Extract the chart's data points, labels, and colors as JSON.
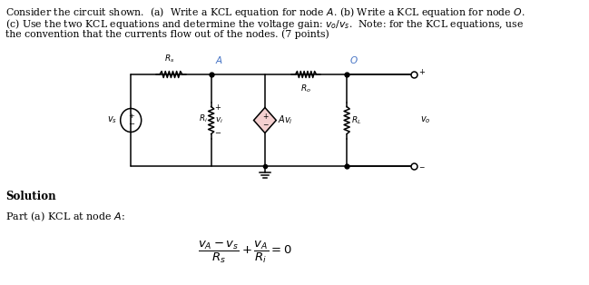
{
  "background_color": "#ffffff",
  "fig_width": 6.49,
  "fig_height": 3.14,
  "dpi": 100,
  "node_A_color": "#4472c4",
  "node_O_color": "#4472c4",
  "wire_color": "#000000",
  "component_color": "#000000",
  "vcvs_fill": "#f2c0c0",
  "text_line1": "Consider the circuit shown.  (a)  Write a KCL equation for node $A$. (b) Write a KCL equation for node $O$.",
  "text_line2": "(c) Use the two KCL equations and determine the voltage gain: $v_o/v_s$.  Note: for the KCL equations, use",
  "text_line3": "the convention that the currents flow out of the nodes. (7 points)",
  "solution_text": "Solution",
  "part_text": "Part (a) KCL at node $A$:"
}
